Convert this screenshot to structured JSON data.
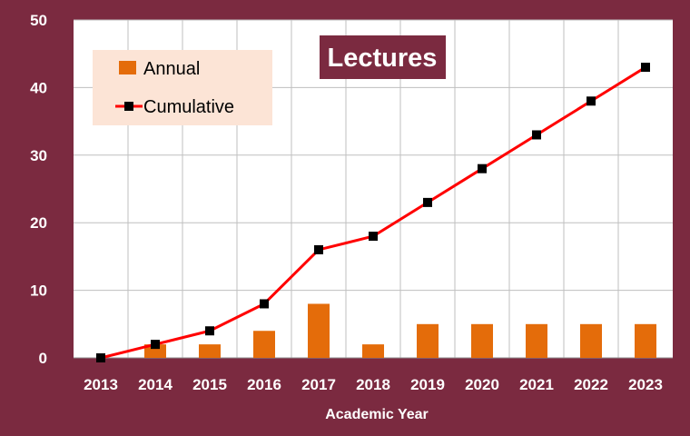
{
  "chart_data": {
    "type": "bar",
    "title": "Lectures",
    "xlabel": "Academic Year",
    "ylabel": "",
    "categories": [
      "2013",
      "2014",
      "2015",
      "2016",
      "2017",
      "2018",
      "2019",
      "2020",
      "2021",
      "2022",
      "2023"
    ],
    "series": [
      {
        "name": "Annual",
        "type": "bar",
        "color": "#e46c0a",
        "values": [
          0,
          2,
          2,
          4,
          8,
          2,
          5,
          5,
          5,
          5,
          5
        ]
      },
      {
        "name": "Cumulative",
        "type": "line",
        "color": "#ff0000",
        "marker_color": "#000000",
        "values": [
          0,
          2,
          4,
          8,
          16,
          18,
          23,
          28,
          33,
          38,
          43
        ]
      }
    ],
    "ylim": [
      0,
      50
    ],
    "yticks": [
      "0",
      "10",
      "20",
      "30",
      "40",
      "50"
    ],
    "grid": true,
    "legend_position": "top-left",
    "colors": {
      "background": "#7b2a40",
      "plot_area": "#ffffff",
      "grid": "#bfbfbf",
      "legend_background": "#fce4d6",
      "text": "#ffffff"
    }
  }
}
